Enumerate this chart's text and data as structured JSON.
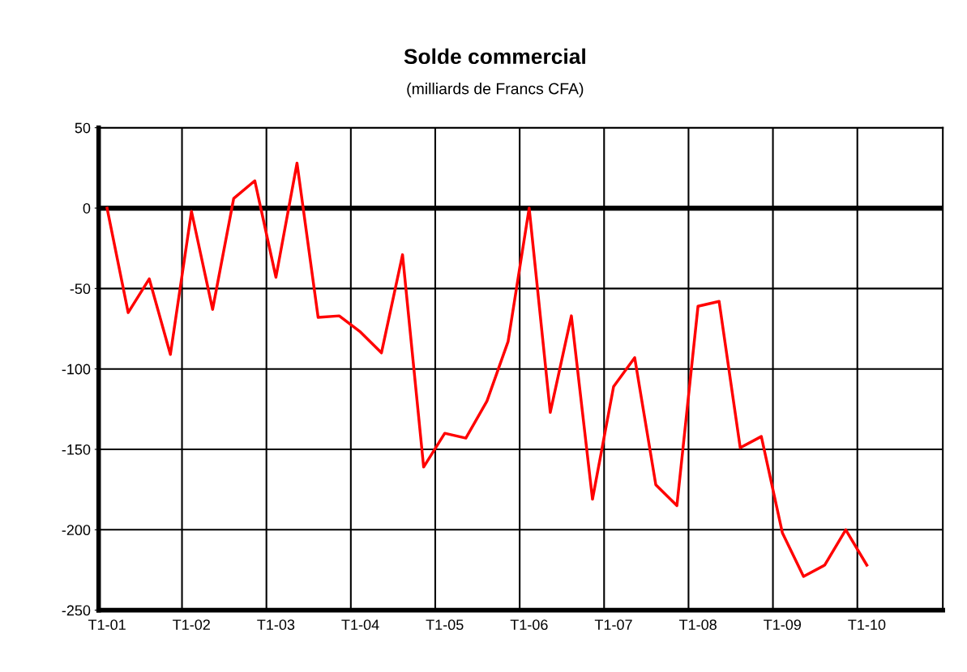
{
  "chart_data": {
    "type": "line",
    "title": "Solde commercial",
    "subtitle": "(milliards de Francs CFA)",
    "categories": [
      "T1-01",
      null,
      null,
      null,
      "T1-02",
      null,
      null,
      null,
      "T1-03",
      null,
      null,
      null,
      "T1-04",
      null,
      null,
      null,
      "T1-05",
      null,
      null,
      null,
      "T1-06",
      null,
      null,
      null,
      "T1-07",
      null,
      null,
      null,
      "T1-08",
      null,
      null,
      null,
      "T1-09",
      null,
      null,
      null,
      "T1-10"
    ],
    "series": [
      {
        "color": "#ff0000",
        "values": [
          0,
          -65,
          -44,
          -91,
          -2,
          -63,
          6,
          17,
          -43,
          28,
          -68,
          -67,
          -77,
          -90,
          -29,
          -161,
          -140,
          -143,
          -120,
          -83,
          0,
          -127,
          -67,
          -181,
          -111,
          -93,
          -172,
          -185,
          -61,
          -58,
          -149,
          -142,
          -202,
          -229,
          -222,
          -200,
          -222
        ]
      }
    ],
    "ylim": [
      -250,
      50
    ],
    "yticks": [
      -250,
      -200,
      -150,
      -100,
      -50,
      0,
      50
    ],
    "ref_lines": [
      {
        "axis": "y",
        "value": 0,
        "color": "#000000"
      }
    ],
    "grid": true,
    "legend": false,
    "marker": "none",
    "line_style": "solid"
  }
}
